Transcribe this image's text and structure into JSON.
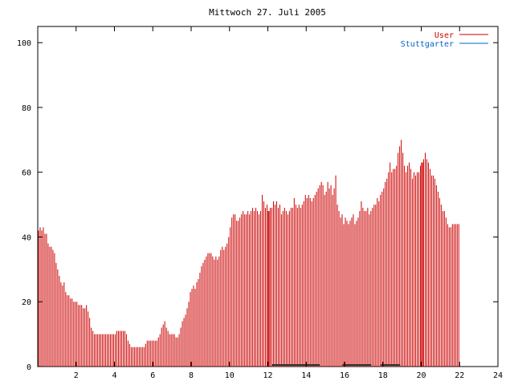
{
  "chart_data": {
    "type": "bar",
    "title": "Mittwoch 27. Juli 2005",
    "xlim": [
      0,
      24
    ],
    "ylim": [
      0,
      105
    ],
    "x_ticks": [
      2,
      4,
      6,
      8,
      10,
      12,
      14,
      16,
      18,
      20,
      22,
      24
    ],
    "y_ticks": [
      0,
      20,
      40,
      60,
      80,
      100
    ],
    "grid": false,
    "legend_position": "top-right",
    "series": [
      {
        "name": "User",
        "color": "#cc0000",
        "points_per_hour": 12,
        "values": [
          42,
          43,
          42,
          43,
          41,
          41,
          38,
          37,
          37,
          36,
          35,
          32,
          30,
          28,
          26,
          25,
          26,
          23,
          22,
          22,
          21,
          21,
          20,
          20,
          20,
          19,
          19,
          19,
          18,
          18,
          19,
          17,
          15,
          12,
          11,
          10,
          10,
          10,
          10,
          10,
          10,
          10,
          10,
          10,
          10,
          10,
          10,
          10,
          10,
          11,
          11,
          11,
          11,
          11,
          11,
          10,
          8,
          7,
          6,
          6,
          6,
          6,
          6,
          6,
          6,
          6,
          6,
          7,
          8,
          8,
          8,
          8,
          8,
          8,
          8,
          9,
          10,
          12,
          13,
          14,
          12,
          11,
          10,
          10,
          10,
          10,
          9,
          9,
          10,
          12,
          14,
          15,
          16,
          18,
          20,
          23,
          24,
          25,
          24,
          26,
          27,
          29,
          31,
          32,
          33,
          34,
          35,
          35,
          35,
          34,
          33,
          34,
          33,
          34,
          36,
          37,
          36,
          37,
          38,
          40,
          43,
          46,
          47,
          47,
          45,
          45,
          46,
          47,
          48,
          47,
          47,
          48,
          47,
          48,
          49,
          48,
          49,
          48,
          47,
          48,
          53,
          51,
          49,
          50,
          48,
          49,
          49,
          51,
          50,
          51,
          49,
          50,
          47,
          48,
          49,
          48,
          47,
          48,
          49,
          49,
          52,
          50,
          49,
          50,
          49,
          50,
          51,
          53,
          52,
          53,
          52,
          51,
          52,
          53,
          54,
          55,
          56,
          57,
          56,
          53,
          54,
          57,
          55,
          56,
          53,
          55,
          59,
          50,
          48,
          46,
          47,
          44,
          46,
          45,
          44,
          45,
          46,
          47,
          44,
          45,
          46,
          48,
          51,
          49,
          48,
          48,
          49,
          47,
          48,
          49,
          50,
          50,
          52,
          51,
          53,
          54,
          55,
          57,
          58,
          60,
          63,
          60,
          61,
          61,
          62,
          66,
          68,
          70,
          66,
          62,
          60,
          62,
          63,
          61,
          58,
          60,
          59,
          60,
          60,
          62,
          63,
          64,
          66,
          64,
          63,
          61,
          59,
          59,
          58,
          56,
          54,
          52,
          50,
          48,
          48,
          46,
          44,
          43,
          43,
          44,
          44,
          44,
          44,
          44
        ]
      },
      {
        "name": "Stuttgarter",
        "color": "#0066cc",
        "values": []
      }
    ]
  }
}
